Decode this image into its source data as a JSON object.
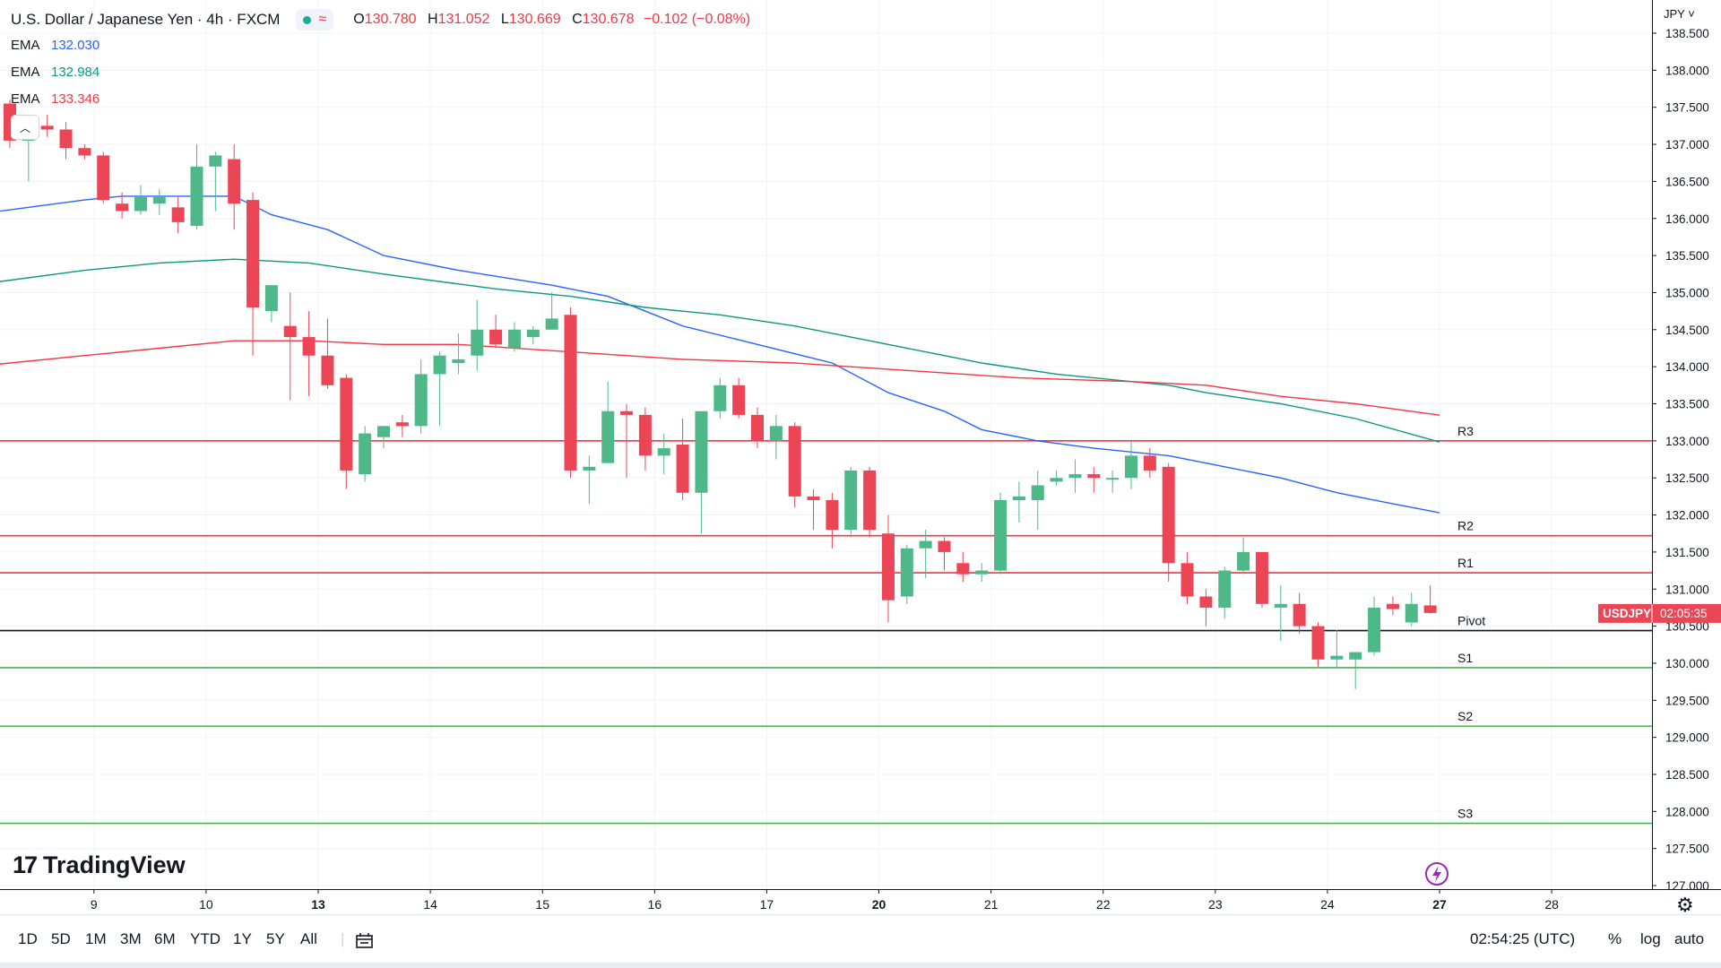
{
  "header": {
    "title": "U.S. Dollar / Japanese Yen · 4h · FXCM",
    "ohlc": {
      "open_label": "O",
      "open": "130.780",
      "high_label": "H",
      "high": "131.052",
      "low_label": "L",
      "low": "130.669",
      "close_label": "C",
      "close": "130.678",
      "change": "−0.102 (−0.08%)"
    }
  },
  "indicators": [
    {
      "label": "EMA",
      "value": "132.030",
      "color": "#2962ff"
    },
    {
      "label": "EMA",
      "value": "132.984",
      "color": "#089981"
    },
    {
      "label": "EMA",
      "value": "133.346",
      "color": "#f23645"
    }
  ],
  "price_axis": {
    "unit": "JPY"
  },
  "price_tag": {
    "symbol": "USDJPY",
    "countdown": "02:05:35",
    "value": 130.678
  },
  "logo": "TradingView",
  "bottom": {
    "ranges": [
      "1D",
      "5D",
      "1M",
      "3M",
      "6M",
      "YTD",
      "1Y",
      "5Y",
      "All"
    ],
    "clock": "02:54:25 (UTC)",
    "options": [
      "%",
      "log",
      "auto"
    ]
  },
  "icons": [
    "chevron-up-icon",
    "calendar-range-icon",
    "settings-gear-icon",
    "lightning-icon"
  ],
  "chart_data": {
    "type": "candlestick",
    "ylim": [
      127.0,
      138.5
    ],
    "y_ticks": [
      127.0,
      127.5,
      128.0,
      128.5,
      129.0,
      129.5,
      130.0,
      130.5,
      131.0,
      131.5,
      132.0,
      132.5,
      133.0,
      133.5,
      134.0,
      134.5,
      135.0,
      135.5,
      136.0,
      136.5,
      137.0,
      137.5,
      138.0,
      138.5
    ],
    "x_ticks": [
      {
        "label": "9",
        "idx": 4.5,
        "bold": false
      },
      {
        "label": "10",
        "idx": 10.5,
        "bold": false
      },
      {
        "label": "13",
        "idx": 16.5,
        "bold": true
      },
      {
        "label": "14",
        "idx": 22.5,
        "bold": false
      },
      {
        "label": "15",
        "idx": 28.5,
        "bold": false
      },
      {
        "label": "16",
        "idx": 34.5,
        "bold": false
      },
      {
        "label": "17",
        "idx": 40.5,
        "bold": false
      },
      {
        "label": "20",
        "idx": 46.5,
        "bold": true
      },
      {
        "label": "21",
        "idx": 52.5,
        "bold": false
      },
      {
        "label": "22",
        "idx": 58.5,
        "bold": false
      },
      {
        "label": "23",
        "idx": 64.5,
        "bold": false
      },
      {
        "label": "24",
        "idx": 70.5,
        "bold": false
      },
      {
        "label": "27",
        "idx": 76.5,
        "bold": true
      },
      {
        "label": "28",
        "idx": 82.5,
        "bold": false
      }
    ],
    "candles": [
      [
        137.55,
        137.6,
        136.95,
        137.05
      ],
      [
        137.05,
        137.3,
        136.5,
        137.25
      ],
      [
        137.25,
        137.4,
        137.1,
        137.2
      ],
      [
        137.2,
        137.3,
        136.8,
        136.95
      ],
      [
        136.95,
        137.0,
        136.8,
        136.85
      ],
      [
        136.85,
        136.9,
        136.2,
        136.25
      ],
      [
        136.2,
        136.35,
        136.0,
        136.1
      ],
      [
        136.1,
        136.45,
        136.05,
        136.3
      ],
      [
        136.2,
        136.4,
        136.05,
        136.3
      ],
      [
        136.15,
        136.3,
        135.8,
        135.95
      ],
      [
        135.9,
        137.0,
        135.85,
        136.7
      ],
      [
        136.7,
        136.9,
        136.1,
        136.85
      ],
      [
        136.8,
        137.0,
        135.85,
        136.2
      ],
      [
        136.25,
        136.35,
        134.15,
        134.8
      ],
      [
        134.75,
        135.1,
        134.6,
        135.1
      ],
      [
        134.55,
        135.0,
        133.55,
        134.4
      ],
      [
        134.4,
        134.75,
        133.6,
        134.15
      ],
      [
        134.15,
        134.65,
        133.7,
        133.75
      ],
      [
        133.85,
        133.9,
        132.35,
        132.6
      ],
      [
        132.55,
        133.2,
        132.45,
        133.1
      ],
      [
        133.05,
        133.2,
        132.9,
        133.2
      ],
      [
        133.25,
        133.35,
        133.05,
        133.2
      ],
      [
        133.2,
        134.1,
        133.1,
        133.9
      ],
      [
        133.9,
        134.2,
        133.2,
        134.15
      ],
      [
        134.05,
        134.45,
        133.9,
        134.1
      ],
      [
        134.15,
        134.9,
        133.95,
        134.5
      ],
      [
        134.5,
        134.7,
        134.25,
        134.3
      ],
      [
        134.25,
        134.6,
        134.2,
        134.5
      ],
      [
        134.4,
        134.55,
        134.3,
        134.5
      ],
      [
        134.5,
        135.0,
        134.5,
        134.65
      ],
      [
        134.7,
        134.8,
        132.5,
        132.6
      ],
      [
        132.6,
        132.8,
        132.15,
        132.65
      ],
      [
        132.7,
        133.8,
        132.7,
        133.4
      ],
      [
        133.4,
        133.5,
        132.5,
        133.35
      ],
      [
        133.35,
        133.45,
        132.6,
        132.8
      ],
      [
        132.8,
        133.1,
        132.55,
        132.9
      ],
      [
        132.95,
        133.3,
        132.2,
        132.3
      ],
      [
        132.3,
        133.4,
        131.75,
        133.4
      ],
      [
        133.4,
        133.85,
        133.3,
        133.75
      ],
      [
        133.75,
        133.85,
        133.3,
        133.35
      ],
      [
        133.35,
        133.45,
        132.9,
        133.0
      ],
      [
        133.0,
        133.35,
        132.75,
        133.2
      ],
      [
        133.2,
        133.25,
        132.1,
        132.25
      ],
      [
        132.25,
        132.35,
        131.8,
        132.2
      ],
      [
        132.2,
        132.3,
        131.55,
        131.8
      ],
      [
        131.8,
        132.65,
        131.7,
        132.6
      ],
      [
        132.6,
        132.65,
        131.7,
        131.8
      ],
      [
        131.75,
        132.0,
        130.55,
        130.85
      ],
      [
        130.9,
        131.6,
        130.8,
        131.55
      ],
      [
        131.55,
        131.8,
        131.15,
        131.65
      ],
      [
        131.65,
        131.7,
        131.25,
        131.5
      ],
      [
        131.35,
        131.5,
        131.1,
        131.2
      ],
      [
        131.2,
        131.35,
        131.1,
        131.25
      ],
      [
        131.25,
        132.3,
        131.2,
        132.2
      ],
      [
        132.2,
        132.45,
        131.9,
        132.25
      ],
      [
        132.2,
        132.6,
        131.8,
        132.4
      ],
      [
        132.45,
        132.6,
        132.4,
        132.5
      ],
      [
        132.5,
        132.75,
        132.3,
        132.55
      ],
      [
        132.55,
        132.65,
        132.3,
        132.5
      ],
      [
        132.5,
        132.6,
        132.3,
        132.5
      ],
      [
        132.5,
        133.0,
        132.35,
        132.8
      ],
      [
        132.8,
        132.9,
        132.5,
        132.6
      ],
      [
        132.65,
        132.7,
        131.1,
        131.35
      ],
      [
        131.35,
        131.5,
        130.8,
        130.9
      ],
      [
        130.9,
        131.0,
        130.5,
        130.75
      ],
      [
        130.75,
        131.3,
        130.6,
        131.25
      ],
      [
        131.25,
        131.7,
        131.2,
        131.5
      ],
      [
        131.5,
        131.5,
        130.75,
        130.8
      ],
      [
        130.75,
        131.05,
        130.3,
        130.8
      ],
      [
        130.8,
        130.95,
        130.4,
        130.5
      ],
      [
        130.5,
        130.55,
        129.95,
        130.05
      ],
      [
        130.05,
        130.45,
        129.95,
        130.1
      ],
      [
        130.05,
        130.15,
        129.65,
        130.15
      ],
      [
        130.15,
        130.9,
        130.1,
        130.75
      ],
      [
        130.8,
        130.9,
        130.65,
        130.73
      ],
      [
        130.55,
        130.95,
        130.5,
        130.8
      ],
      [
        130.78,
        131.052,
        130.669,
        130.678
      ]
    ],
    "ema_series": [
      {
        "label": "EMA",
        "color": "#2962ff",
        "points": [
          [
            -2,
            136.05
          ],
          [
            4,
            136.25
          ],
          [
            6,
            136.3
          ],
          [
            12,
            136.3
          ],
          [
            14,
            136.05
          ],
          [
            17,
            135.85
          ],
          [
            20,
            135.5
          ],
          [
            24,
            135.3
          ],
          [
            29,
            135.1
          ],
          [
            32,
            134.95
          ],
          [
            36,
            134.55
          ],
          [
            40,
            134.3
          ],
          [
            44,
            134.05
          ],
          [
            47,
            133.65
          ],
          [
            50,
            133.4
          ],
          [
            52,
            133.15
          ],
          [
            55,
            133.0
          ],
          [
            58,
            132.9
          ],
          [
            62,
            132.8
          ],
          [
            65,
            132.65
          ],
          [
            68,
            132.5
          ],
          [
            71,
            132.3
          ],
          [
            74,
            132.15
          ],
          [
            76.5,
            132.03
          ]
        ]
      },
      {
        "label": "EMA",
        "color": "#089981",
        "points": [
          [
            -2,
            135.1
          ],
          [
            4,
            135.3
          ],
          [
            8,
            135.4
          ],
          [
            12,
            135.45
          ],
          [
            16,
            135.4
          ],
          [
            20,
            135.25
          ],
          [
            26,
            135.05
          ],
          [
            30,
            134.95
          ],
          [
            34,
            134.8
          ],
          [
            38,
            134.7
          ],
          [
            42,
            134.55
          ],
          [
            46,
            134.35
          ],
          [
            50,
            134.15
          ],
          [
            52,
            134.05
          ],
          [
            56,
            133.9
          ],
          [
            62,
            133.75
          ],
          [
            64,
            133.65
          ],
          [
            68,
            133.5
          ],
          [
            72,
            133.3
          ],
          [
            76.5,
            132.984
          ]
        ]
      },
      {
        "label": "EMA",
        "color": "#f23645",
        "points": [
          [
            -2,
            134.0
          ],
          [
            4,
            134.15
          ],
          [
            8,
            134.25
          ],
          [
            12,
            134.35
          ],
          [
            16,
            134.35
          ],
          [
            20,
            134.3
          ],
          [
            24,
            134.3
          ],
          [
            30,
            134.2
          ],
          [
            36,
            134.1
          ],
          [
            42,
            134.05
          ],
          [
            48,
            133.95
          ],
          [
            54,
            133.85
          ],
          [
            60,
            133.8
          ],
          [
            64,
            133.75
          ],
          [
            68,
            133.6
          ],
          [
            72,
            133.5
          ],
          [
            76.5,
            133.346
          ]
        ]
      }
    ],
    "levels": [
      {
        "label": "R3",
        "value": 133.0,
        "color": "#f23645"
      },
      {
        "label": "R2",
        "value": 131.72,
        "color": "#f23645"
      },
      {
        "label": "R1",
        "value": 131.22,
        "color": "#f23645"
      },
      {
        "label": "Pivot",
        "value": 130.44,
        "color": "#131722"
      },
      {
        "label": "S1",
        "value": 129.94,
        "color": "#4caf50"
      },
      {
        "label": "S2",
        "value": 129.15,
        "color": "#4caf50"
      },
      {
        "label": "S3",
        "value": 127.84,
        "color": "#4caf50"
      }
    ],
    "up_color": "#4eb889",
    "down_color": "#ec4656"
  }
}
